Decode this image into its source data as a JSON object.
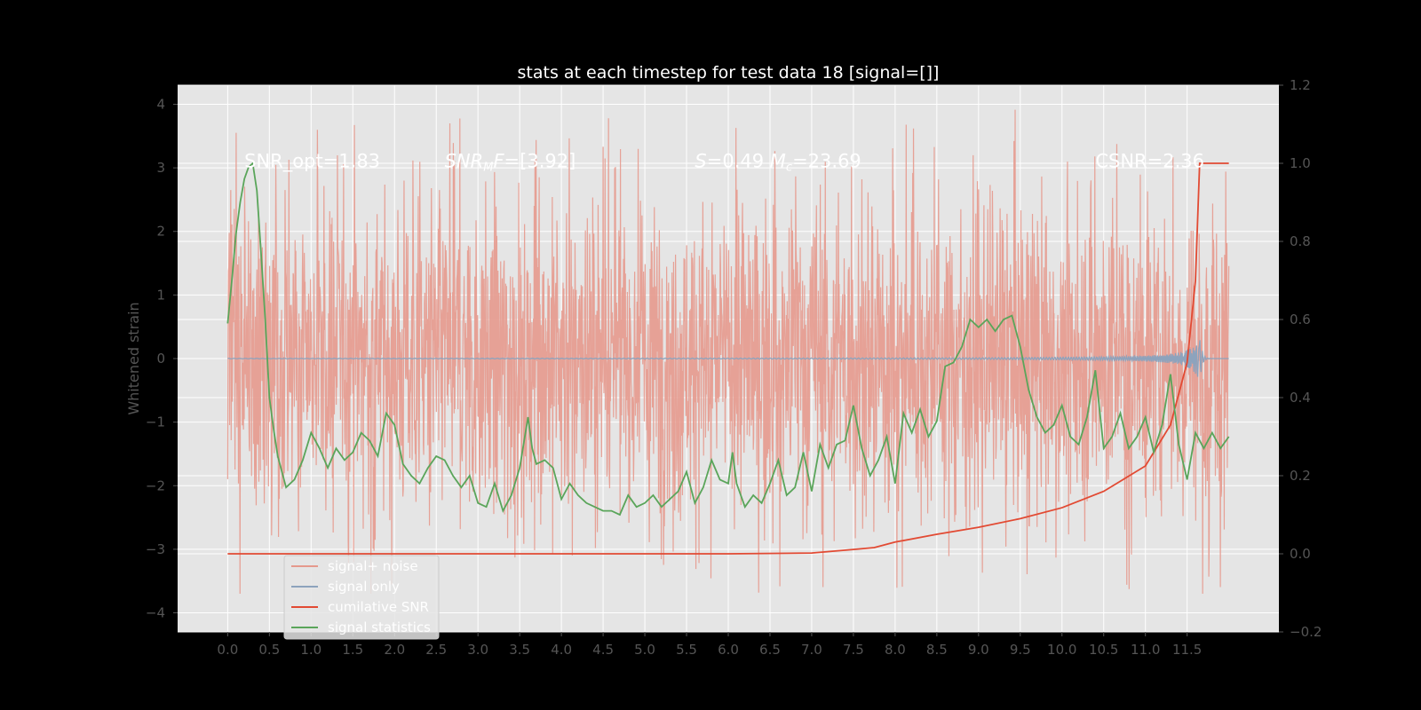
{
  "chart_data": {
    "type": "line",
    "title": "stats at each timestep for test data 18 [signal=[]]",
    "xlabel": "",
    "ylabel": "Whitened strain",
    "xlim": [
      -0.6,
      12.6
    ],
    "ylim_left": [
      -4.3,
      4.3
    ],
    "ylim_right": [
      -0.2,
      1.2
    ],
    "x_ticks": [
      0.0,
      0.5,
      1.0,
      1.5,
      2.0,
      2.5,
      3.0,
      3.5,
      4.0,
      4.5,
      5.0,
      5.5,
      6.0,
      6.5,
      7.0,
      7.5,
      8.0,
      8.5,
      9.0,
      9.5,
      10.0,
      10.5,
      11.0,
      11.5
    ],
    "x_tick_labels": [
      "0.0",
      "0.5",
      "1.0",
      "1.5",
      "2.0",
      "2.5",
      "3.0",
      "3.5",
      "4.0",
      "4.5",
      "5.0",
      "5.5",
      "6.0",
      "6.5",
      "7.0",
      "7.5",
      "8.0",
      "8.5",
      "9.0",
      "9.5",
      "10.0",
      "10.5",
      "11.0",
      "11.5"
    ],
    "y_left_ticks": [
      4,
      3,
      2,
      1,
      0,
      -1,
      -2,
      -3,
      -4
    ],
    "y_left_tick_labels": [
      "4",
      "3",
      "2",
      "1",
      "0",
      "−1",
      "−2",
      "−3",
      "−4"
    ],
    "y_right_ticks": [
      1.2,
      1.0,
      0.8,
      0.6,
      0.4,
      0.2,
      0.0,
      -0.2
    ],
    "y_right_tick_labels": [
      "1.2",
      "1.0",
      "0.8",
      "0.6",
      "0.4",
      "0.2",
      "0.0",
      "−0.2"
    ],
    "annotations": [
      {
        "id": "snr-opt",
        "text": "SNR_opt=1.83",
        "x": 0.2,
        "y_right": 0.99
      },
      {
        "id": "snr-mf",
        "prefix": "SNR",
        "sub": "M",
        "suffix": "F=[3.92]",
        "x": 2.6,
        "y_right": 0.99
      },
      {
        "id": "s-mc",
        "s_prefix": "S",
        "s_value": "=0.49",
        "m_prefix": "M",
        "m_sub": "c",
        "m_value": "=23.69",
        "x": 5.6,
        "y_right": 0.99
      },
      {
        "id": "csnr",
        "text": "CSNR=2.36",
        "x": 10.4,
        "y_right": 0.99
      }
    ],
    "series": [
      {
        "name": "signal+ noise",
        "color": "#e5998d",
        "kind": "noise",
        "x_range": [
          0.0,
          12.0
        ],
        "typical_amplitude": 1.7,
        "peak_max": 4.1,
        "peak_min": -3.7
      },
      {
        "name": "signal only",
        "color": "#8da3bd",
        "kind": "chirp",
        "x_range": [
          0.0,
          12.0
        ],
        "merger_time": 11.65,
        "peak_amplitude": 0.42
      },
      {
        "name": "cumilative SNR",
        "color": "#e24a33",
        "kind": "line",
        "x": [
          0.0,
          1.0,
          2.0,
          3.0,
          4.0,
          5.0,
          6.0,
          7.0,
          7.5,
          7.75,
          8.0,
          8.5,
          9.0,
          9.5,
          10.0,
          10.5,
          11.0,
          11.3,
          11.5,
          11.6,
          11.65,
          11.7,
          12.0
        ],
        "y": [
          0.0,
          0.0,
          0.0,
          0.0,
          0.0,
          0.0,
          0.0,
          0.002,
          0.011,
          0.016,
          0.03,
          0.05,
          0.068,
          0.09,
          0.118,
          0.16,
          0.225,
          0.33,
          0.49,
          0.7,
          1.0,
          1.0,
          1.0
        ]
      },
      {
        "name": "signal statistics",
        "color": "#5aa55a",
        "kind": "line",
        "x": [
          0.0,
          0.05,
          0.1,
          0.15,
          0.2,
          0.25,
          0.3,
          0.35,
          0.4,
          0.45,
          0.5,
          0.55,
          0.6,
          0.7,
          0.8,
          0.9,
          1.0,
          1.1,
          1.2,
          1.3,
          1.4,
          1.5,
          1.6,
          1.7,
          1.8,
          1.9,
          2.0,
          2.1,
          2.2,
          2.3,
          2.4,
          2.5,
          2.6,
          2.7,
          2.8,
          2.9,
          3.0,
          3.1,
          3.2,
          3.3,
          3.4,
          3.5,
          3.6,
          3.65,
          3.7,
          3.8,
          3.9,
          4.0,
          4.1,
          4.2,
          4.3,
          4.4,
          4.5,
          4.6,
          4.7,
          4.8,
          4.9,
          5.0,
          5.1,
          5.2,
          5.3,
          5.4,
          5.5,
          5.6,
          5.7,
          5.8,
          5.9,
          6.0,
          6.05,
          6.1,
          6.2,
          6.3,
          6.4,
          6.5,
          6.6,
          6.7,
          6.8,
          6.9,
          7.0,
          7.1,
          7.2,
          7.3,
          7.4,
          7.5,
          7.6,
          7.7,
          7.8,
          7.9,
          8.0,
          8.1,
          8.2,
          8.3,
          8.4,
          8.5,
          8.6,
          8.7,
          8.8,
          8.9,
          9.0,
          9.1,
          9.2,
          9.3,
          9.4,
          9.5,
          9.6,
          9.7,
          9.8,
          9.9,
          10.0,
          10.1,
          10.2,
          10.3,
          10.4,
          10.5,
          10.6,
          10.7,
          10.8,
          10.9,
          11.0,
          11.1,
          11.2,
          11.3,
          11.4,
          11.5,
          11.6,
          11.7,
          11.8,
          11.9,
          12.0
        ],
        "y": [
          0.59,
          0.7,
          0.82,
          0.9,
          0.96,
          0.99,
          1.0,
          0.93,
          0.77,
          0.6,
          0.4,
          0.32,
          0.25,
          0.17,
          0.19,
          0.24,
          0.31,
          0.27,
          0.22,
          0.27,
          0.24,
          0.26,
          0.31,
          0.29,
          0.25,
          0.36,
          0.33,
          0.23,
          0.2,
          0.18,
          0.22,
          0.25,
          0.24,
          0.2,
          0.17,
          0.2,
          0.13,
          0.12,
          0.18,
          0.11,
          0.15,
          0.22,
          0.35,
          0.27,
          0.23,
          0.24,
          0.22,
          0.14,
          0.18,
          0.15,
          0.13,
          0.12,
          0.11,
          0.11,
          0.1,
          0.15,
          0.12,
          0.13,
          0.15,
          0.12,
          0.14,
          0.16,
          0.21,
          0.13,
          0.17,
          0.24,
          0.19,
          0.18,
          0.26,
          0.18,
          0.12,
          0.15,
          0.13,
          0.18,
          0.24,
          0.15,
          0.17,
          0.26,
          0.16,
          0.28,
          0.22,
          0.28,
          0.29,
          0.38,
          0.27,
          0.2,
          0.24,
          0.3,
          0.18,
          0.36,
          0.31,
          0.37,
          0.3,
          0.34,
          0.48,
          0.49,
          0.53,
          0.6,
          0.58,
          0.6,
          0.57,
          0.6,
          0.61,
          0.53,
          0.42,
          0.35,
          0.31,
          0.33,
          0.38,
          0.3,
          0.28,
          0.35,
          0.47,
          0.27,
          0.3,
          0.36,
          0.27,
          0.3,
          0.35,
          0.26,
          0.33,
          0.46,
          0.28,
          0.19,
          0.31,
          0.27,
          0.31,
          0.27,
          0.3
        ]
      }
    ],
    "legend": {
      "location": "lower-left",
      "entries": [
        {
          "label": "signal+ noise",
          "color": "#e5998d"
        },
        {
          "label": "signal only",
          "color": "#8da3bd"
        },
        {
          "label": "cumilative SNR",
          "color": "#e24a33"
        },
        {
          "label": "signal statistics",
          "color": "#5aa55a"
        }
      ]
    },
    "colors": {
      "figure_background": "#000000",
      "axes_background": "#e5e5e5",
      "grid": "#ffffff",
      "tick_text": "#555555",
      "title_text": "#ffffff"
    }
  }
}
